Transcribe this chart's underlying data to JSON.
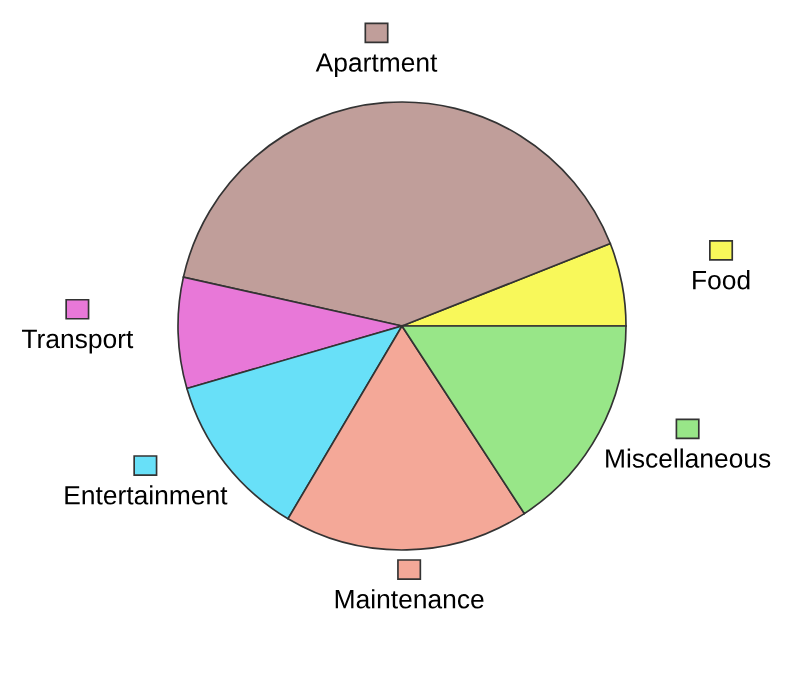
{
  "chart_data": {
    "type": "pie",
    "legend": "top left",
    "categories": [
      "Food",
      "Apartment",
      "Transport",
      "Entertainment",
      "Maintenance",
      "Miscellaneous"
    ],
    "values": [
      6,
      40.5,
      8,
      12,
      17.7,
      15.8
    ],
    "colors": [
      "#f8f85a",
      "#c09e9a",
      "#e878d8",
      "#68e0f8",
      "#f4a898",
      "#98e688"
    ]
  }
}
